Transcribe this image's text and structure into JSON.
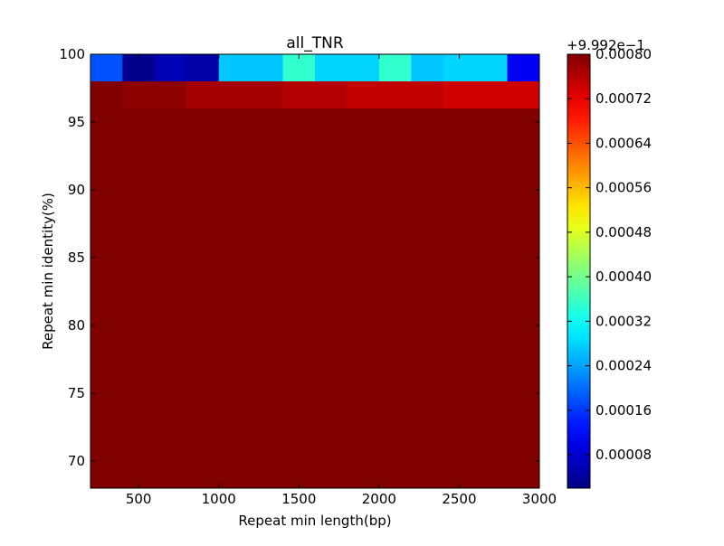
{
  "chart_data": {
    "type": "heatmap",
    "title": "all_TNR",
    "xlabel": "Repeat min length(bp)",
    "ylabel": "Repeat min identity(%)",
    "xlim": [
      200,
      3000
    ],
    "ylim": [
      68,
      100
    ],
    "x_ticks": [
      500,
      1000,
      1500,
      2000,
      2500,
      3000
    ],
    "y_ticks": [
      70,
      75,
      80,
      85,
      90,
      95,
      100
    ],
    "x_edges": [
      200,
      400,
      600,
      800,
      1000,
      1200,
      1400,
      1600,
      1800,
      2000,
      2200,
      2400,
      2600,
      2800,
      3000
    ],
    "row_edges_top_to_bottom": [
      100,
      98,
      96,
      68
    ],
    "cells_top_to_bottom": [
      [
        0.00018,
        3e-05,
        6e-05,
        5e-05,
        0.00027,
        0.00027,
        0.00035,
        0.00028,
        0.00028,
        0.00035,
        0.00027,
        0.00028,
        0.00028,
        0.00011
      ],
      [
        0.0008,
        0.00079,
        0.00079,
        0.00077,
        0.00077,
        0.00077,
        0.00076,
        0.00076,
        0.00075,
        0.00075,
        0.00075,
        0.00074,
        0.00074,
        0.00074
      ],
      [
        0.0008,
        0.0008,
        0.0008,
        0.0008,
        0.0008,
        0.0008,
        0.0008,
        0.0008,
        0.0008,
        0.0008,
        0.0008,
        0.0008,
        0.0008,
        0.0008
      ]
    ],
    "colorbar": {
      "offset_label": "+9.992e−1",
      "vmin": 2e-05,
      "vmax": 0.0008,
      "ticks": [
        8e-05,
        0.00016,
        0.00024,
        0.00032,
        0.0004,
        0.00048,
        0.00056,
        0.00064,
        0.00072,
        0.0008
      ],
      "tick_labels": [
        "0.00008",
        "0.00016",
        "0.00024",
        "0.00032",
        "0.00040",
        "0.00048",
        "0.00056",
        "0.00064",
        "0.00072",
        "0.00080"
      ],
      "colormap": "jet"
    }
  }
}
